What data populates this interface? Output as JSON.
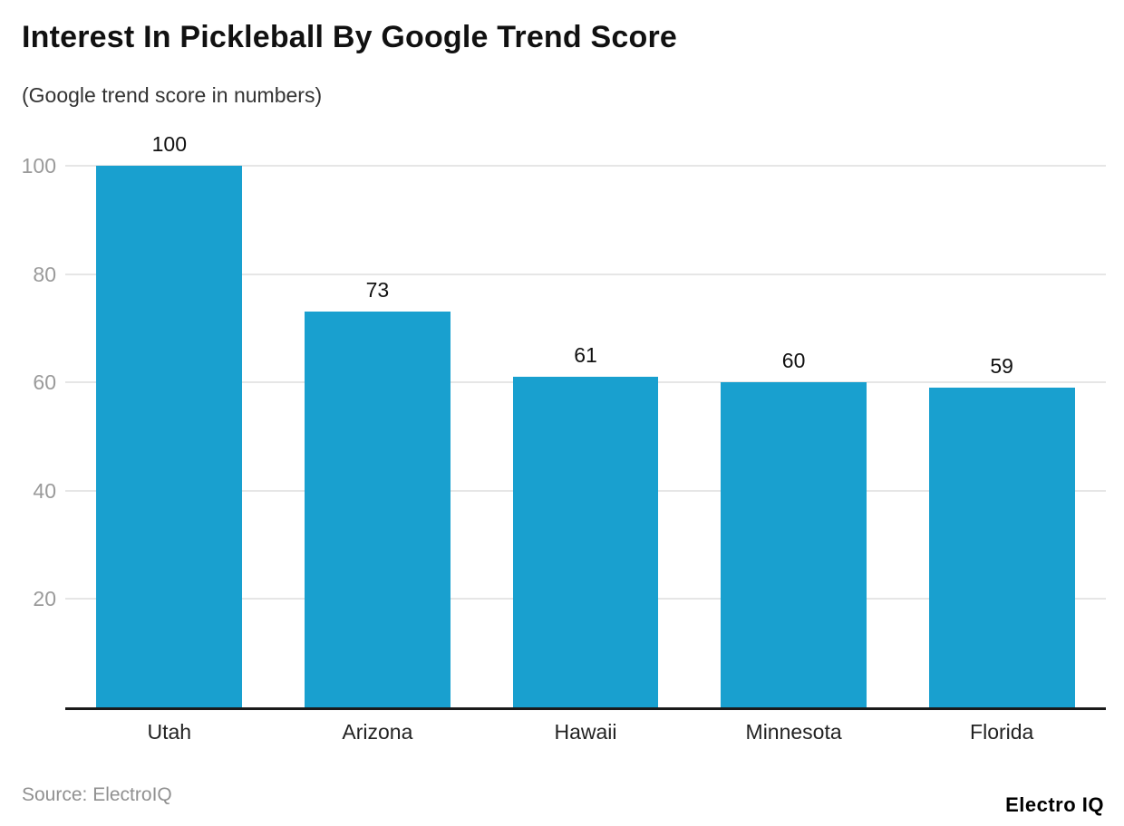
{
  "header": {
    "title": "Interest In Pickleball By Google Trend Score",
    "subtitle": "(Google trend score in numbers)"
  },
  "footer": {
    "source": "Source: ElectroIQ",
    "brand": "Electro IQ"
  },
  "colors": {
    "bar": "#19A0CF",
    "gridline": "#E6E6E6",
    "axis_line": "#1A1A1A",
    "y_tick_label": "#9A9A9A",
    "category_label": "#222222",
    "value_label": "#111111",
    "source_text": "#909090"
  },
  "chart_data": {
    "type": "bar",
    "categories": [
      "Utah",
      "Arizona",
      "Hawaii",
      "Minnesota",
      "Florida"
    ],
    "values": [
      100,
      73,
      61,
      60,
      59
    ],
    "title": "Interest In Pickleball By Google Trend Score",
    "subtitle": "(Google trend score in numbers)",
    "xlabel": "",
    "ylabel": "",
    "ylim": [
      0,
      100
    ],
    "yticks": [
      20,
      40,
      60,
      80,
      100
    ],
    "grid": true,
    "legend": false,
    "bar_width_fraction": 0.7
  }
}
